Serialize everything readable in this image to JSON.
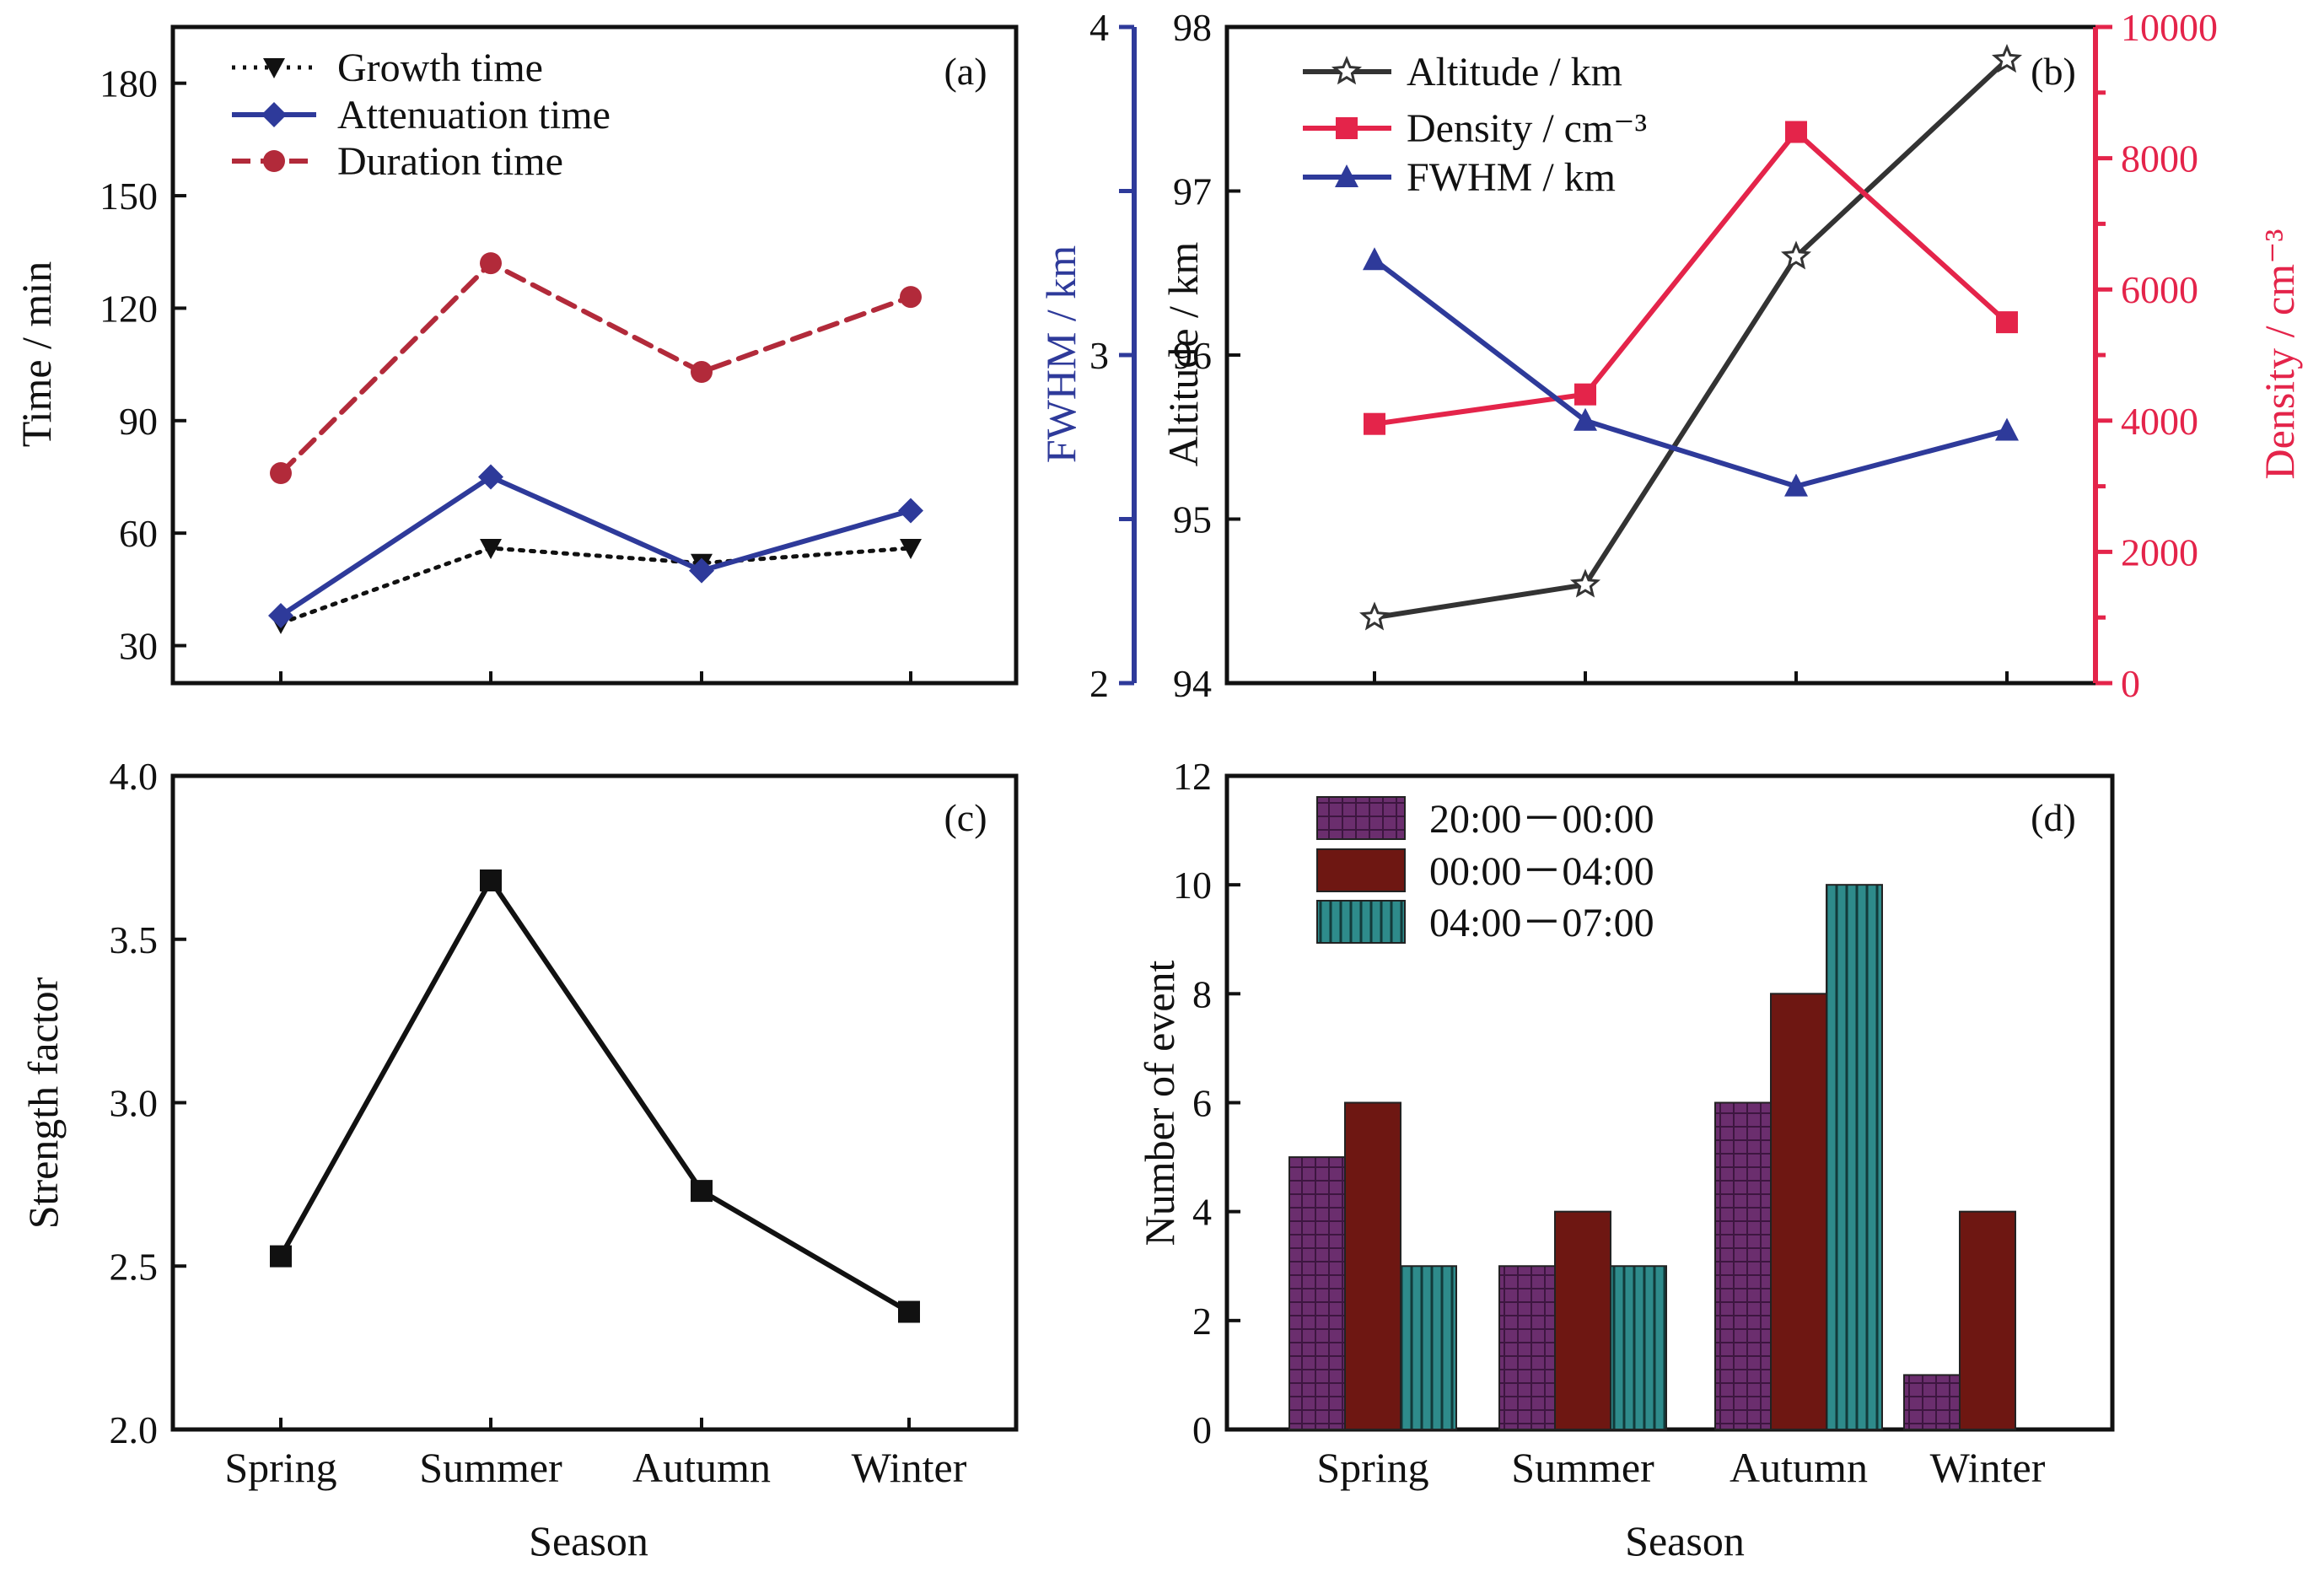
{
  "figure": {
    "season_xlabel": "Season",
    "categories": [
      "Spring",
      "Summer",
      "Autumn",
      "Winter"
    ]
  },
  "chart_data": [
    {
      "id": "a",
      "panel_label": "(a)",
      "type": "line",
      "categories": [
        "Spring",
        "Summer",
        "Autumn",
        "Winter"
      ],
      "ylabel": "Time / min",
      "ylim": [
        20,
        195
      ],
      "yticks": [
        "30",
        "60",
        "90",
        "120",
        "150",
        "180"
      ],
      "series": [
        {
          "name": "Growth time",
          "values": [
            36,
            56,
            52,
            56
          ],
          "color": "#111111",
          "style": "dotted",
          "marker": "triangle-down"
        },
        {
          "name": "Attenuation time",
          "values": [
            38,
            75,
            50,
            66
          ],
          "color": "#2e3a9a",
          "style": "solid",
          "marker": "diamond"
        },
        {
          "name": "Duration time",
          "values": [
            76,
            132,
            103,
            123
          ],
          "color": "#b22a3a",
          "style": "dashed",
          "marker": "circle"
        }
      ]
    },
    {
      "id": "b",
      "panel_label": "(b)",
      "type": "line",
      "categories": [
        "Spring",
        "Summer",
        "Autumn",
        "Winter"
      ],
      "axes": {
        "fwhm": {
          "label": "FWHM / km",
          "ylim": [
            2,
            4
          ],
          "ticks": [
            "2",
            "3",
            "4"
          ],
          "color": "#2e3a9a"
        },
        "altitude": {
          "label": "Altitude / km",
          "ylim": [
            94,
            98
          ],
          "ticks": [
            "94",
            "95",
            "96",
            "97",
            "98"
          ],
          "color": "#111111"
        },
        "density": {
          "label": "Density / cm⁻³",
          "ylim": [
            0,
            10000
          ],
          "ticks": [
            "0",
            "2000",
            "4000",
            "6000",
            "8000",
            "10000"
          ],
          "color": "#e4244a"
        }
      },
      "series": [
        {
          "name": "Altitude / km",
          "legend_label": "Altitude / km",
          "axis": "altitude",
          "values": [
            94.4,
            94.6,
            96.6,
            97.8
          ],
          "color": "#333333",
          "marker": "star"
        },
        {
          "name": "Density / cm⁻³",
          "legend_label": "Density / cm⁻³",
          "axis": "density",
          "values": [
            3950,
            4400,
            8400,
            5500
          ],
          "color": "#e4244a",
          "marker": "square"
        },
        {
          "name": "FWHM / km",
          "legend_label": "FWHM / km",
          "axis": "fwhm",
          "values": [
            3.29,
            2.8,
            2.6,
            2.77
          ],
          "color": "#2e3a9a",
          "marker": "triangle-up"
        }
      ]
    },
    {
      "id": "c",
      "panel_label": "(c)",
      "type": "line",
      "categories": [
        "Spring",
        "Summer",
        "Autumn",
        "Winter"
      ],
      "xlabel": "Season",
      "ylabel": "Strength factor",
      "ylim": [
        2.0,
        4.0
      ],
      "yticks": [
        "2.0",
        "2.5",
        "3.0",
        "3.5",
        "4.0"
      ],
      "series": [
        {
          "name": "Strength factor",
          "values": [
            2.53,
            3.68,
            2.73,
            2.36
          ],
          "color": "#111111",
          "marker": "square"
        }
      ]
    },
    {
      "id": "d",
      "panel_label": "(d)",
      "type": "bar",
      "categories": [
        "Spring",
        "Summer",
        "Autumn",
        "Winter"
      ],
      "xlabel": "Season",
      "ylabel": "Number of event",
      "ylim": [
        0,
        12
      ],
      "yticks": [
        "0",
        "2",
        "4",
        "6",
        "8",
        "10",
        "12"
      ],
      "series": [
        {
          "name": "20:00－00:00",
          "values": [
            5,
            3,
            6,
            1
          ],
          "color": "#6b2e6e",
          "pattern": "grid"
        },
        {
          "name": "00:00－04:00",
          "values": [
            6,
            4,
            8,
            4
          ],
          "color": "#6e1712",
          "pattern": "none"
        },
        {
          "name": "04:00－07:00",
          "values": [
            3,
            3,
            10,
            0
          ],
          "color": "#2e8b8b",
          "pattern": "vlines"
        }
      ]
    }
  ]
}
